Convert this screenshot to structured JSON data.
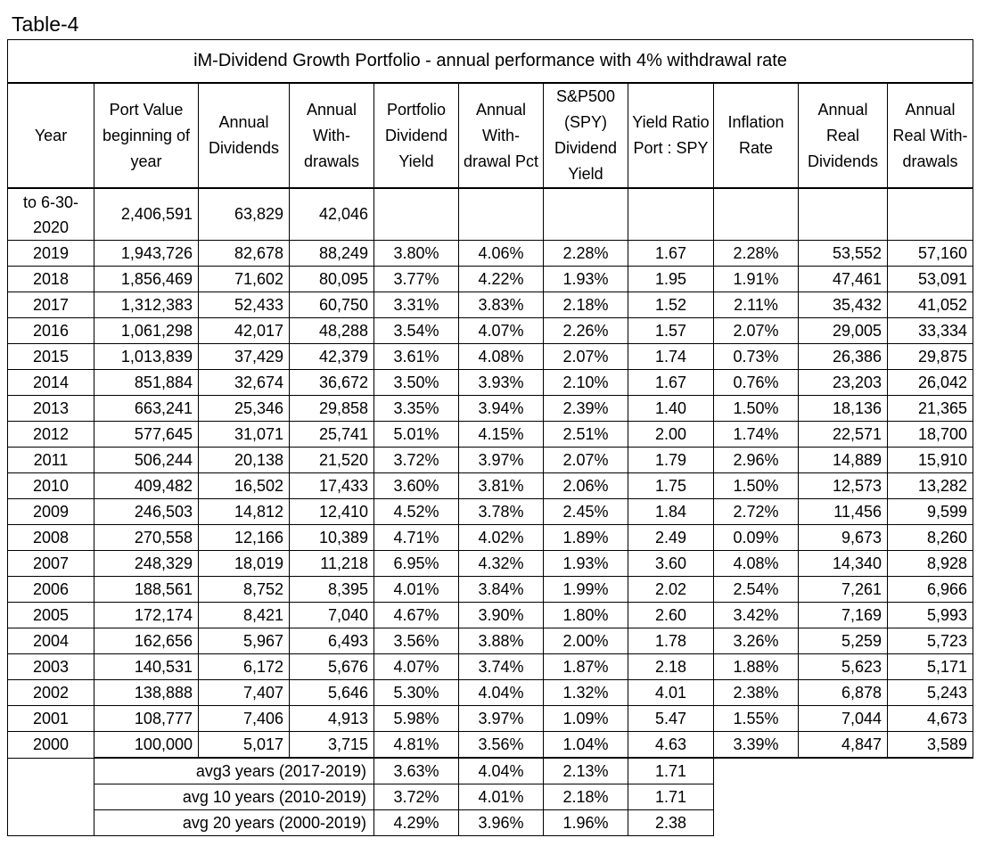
{
  "caption": "Table-4",
  "table": {
    "title": "iM-Dividend Growth Portfolio - annual performance with 4% withdrawal rate",
    "headers": [
      "Year",
      "Port Value beginning of year",
      "Annual Dividends",
      "Annual With-drawals",
      "Portfolio Dividend Yield",
      "Annual With-drawal Pct",
      "S&P500 (SPY) Dividend Yield",
      "Yield Ratio Port : SPY",
      "Inflation Rate",
      "Annual Real Dividends",
      "Annual Real With-drawals"
    ],
    "partial_row": [
      "to 6-30-2020",
      "2,406,591",
      "63,829",
      "42,046",
      "",
      "",
      "",
      "",
      "",
      "",
      ""
    ],
    "rows": [
      [
        "2019",
        "1,943,726",
        "82,678",
        "88,249",
        "3.80%",
        "4.06%",
        "2.28%",
        "1.67",
        "2.28%",
        "53,552",
        "57,160"
      ],
      [
        "2018",
        "1,856,469",
        "71,602",
        "80,095",
        "3.77%",
        "4.22%",
        "1.93%",
        "1.95",
        "1.91%",
        "47,461",
        "53,091"
      ],
      [
        "2017",
        "1,312,383",
        "52,433",
        "60,750",
        "3.31%",
        "3.83%",
        "2.18%",
        "1.52",
        "2.11%",
        "35,432",
        "41,052"
      ],
      [
        "2016",
        "1,061,298",
        "42,017",
        "48,288",
        "3.54%",
        "4.07%",
        "2.26%",
        "1.57",
        "2.07%",
        "29,005",
        "33,334"
      ],
      [
        "2015",
        "1,013,839",
        "37,429",
        "42,379",
        "3.61%",
        "4.08%",
        "2.07%",
        "1.74",
        "0.73%",
        "26,386",
        "29,875"
      ],
      [
        "2014",
        "851,884",
        "32,674",
        "36,672",
        "3.50%",
        "3.93%",
        "2.10%",
        "1.67",
        "0.76%",
        "23,203",
        "26,042"
      ],
      [
        "2013",
        "663,241",
        "25,346",
        "29,858",
        "3.35%",
        "3.94%",
        "2.39%",
        "1.40",
        "1.50%",
        "18,136",
        "21,365"
      ],
      [
        "2012",
        "577,645",
        "31,071",
        "25,741",
        "5.01%",
        "4.15%",
        "2.51%",
        "2.00",
        "1.74%",
        "22,571",
        "18,700"
      ],
      [
        "2011",
        "506,244",
        "20,138",
        "21,520",
        "3.72%",
        "3.97%",
        "2.07%",
        "1.79",
        "2.96%",
        "14,889",
        "15,910"
      ],
      [
        "2010",
        "409,482",
        "16,502",
        "17,433",
        "3.60%",
        "3.81%",
        "2.06%",
        "1.75",
        "1.50%",
        "12,573",
        "13,282"
      ],
      [
        "2009",
        "246,503",
        "14,812",
        "12,410",
        "4.52%",
        "3.78%",
        "2.45%",
        "1.84",
        "2.72%",
        "11,456",
        "9,599"
      ],
      [
        "2008",
        "270,558",
        "12,166",
        "10,389",
        "4.71%",
        "4.02%",
        "1.89%",
        "2.49",
        "0.09%",
        "9,673",
        "8,260"
      ],
      [
        "2007",
        "248,329",
        "18,019",
        "11,218",
        "6.95%",
        "4.32%",
        "1.93%",
        "3.60",
        "4.08%",
        "14,340",
        "8,928"
      ],
      [
        "2006",
        "188,561",
        "8,752",
        "8,395",
        "4.01%",
        "3.84%",
        "1.99%",
        "2.02",
        "2.54%",
        "7,261",
        "6,966"
      ],
      [
        "2005",
        "172,174",
        "8,421",
        "7,040",
        "4.67%",
        "3.90%",
        "1.80%",
        "2.60",
        "3.42%",
        "7,169",
        "5,993"
      ],
      [
        "2004",
        "162,656",
        "5,967",
        "6,493",
        "3.56%",
        "3.88%",
        "2.00%",
        "1.78",
        "3.26%",
        "5,259",
        "5,723"
      ],
      [
        "2003",
        "140,531",
        "6,172",
        "5,676",
        "4.07%",
        "3.74%",
        "1.87%",
        "2.18",
        "1.88%",
        "5,623",
        "5,171"
      ],
      [
        "2002",
        "138,888",
        "7,407",
        "5,646",
        "5.30%",
        "4.04%",
        "1.32%",
        "4.01",
        "2.38%",
        "6,878",
        "5,243"
      ],
      [
        "2001",
        "108,777",
        "7,406",
        "4,913",
        "5.98%",
        "3.97%",
        "1.09%",
        "5.47",
        "1.55%",
        "7,044",
        "4,673"
      ],
      [
        "2000",
        "100,000",
        "5,017",
        "3,715",
        "4.81%",
        "3.56%",
        "1.04%",
        "4.63",
        "3.39%",
        "4,847",
        "3,589"
      ]
    ],
    "averages": [
      {
        "label": "avg3 years (2017-2019)",
        "values": [
          "3.63%",
          "4.04%",
          "2.13%",
          "1.71"
        ]
      },
      {
        "label": "avg 10 years (2010-2019)",
        "values": [
          "3.72%",
          "4.01%",
          "2.18%",
          "1.71"
        ]
      },
      {
        "label": "avg 20 years (2000-2019)",
        "values": [
          "4.29%",
          "3.96%",
          "1.96%",
          "2.38"
        ]
      }
    ]
  }
}
